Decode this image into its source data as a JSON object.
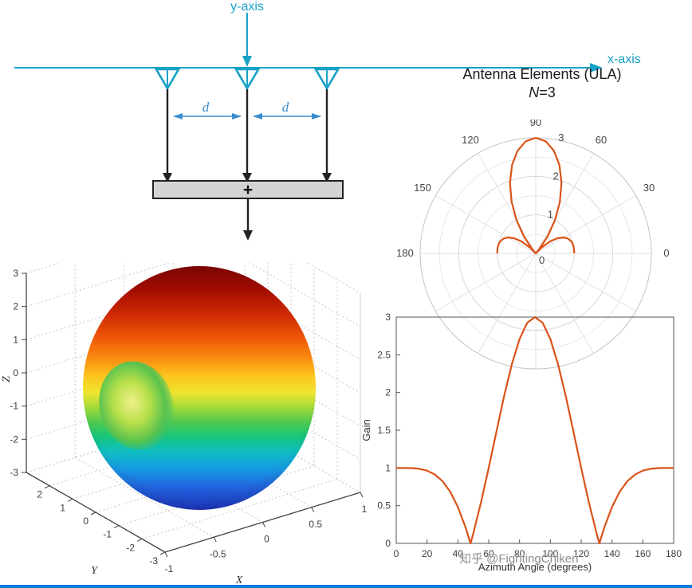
{
  "watermark": {
    "text": "知乎 @FightingChiken"
  },
  "footer": {
    "color": "#0d7ce0"
  },
  "ula_diagram": {
    "y_axis_label": "y-axis",
    "x_axis_label": "x-axis",
    "spacing_labels": [
      "d",
      "d"
    ],
    "sum_symbol": "+",
    "element_count": 3,
    "accent_color": "#17a2c6",
    "dim_color": "#3c8dcf",
    "block_fill": "#d4d4d4"
  },
  "polar_chart": {
    "title": "Antenna Elements (ULA)",
    "subtitle_italic": "N",
    "subtitle_rest": "=3",
    "theta_tick_labels": [
      "0",
      "30",
      "60",
      "90",
      "120",
      "150",
      "180"
    ],
    "theta_tick_angles": [
      0,
      30,
      60,
      90,
      120,
      150,
      180
    ],
    "r_tick_labels": [
      "0",
      "1",
      "2",
      "3"
    ],
    "line_color": "#d95319"
  },
  "surface_chart": {
    "xlabel": "X",
    "ylabel": "Y",
    "zlabel": "Z",
    "z_tick_labels": [
      "3",
      "2",
      "1",
      "0",
      "-1",
      "-2",
      "-3"
    ],
    "y_tick_labels": [
      "2",
      "1",
      "0",
      "-1",
      "-2",
      "-3"
    ],
    "x_tick_labels": [
      "-1",
      "-0.5",
      "0",
      "0.5",
      "1"
    ],
    "colormap": "jet"
  },
  "line_chart": {
    "xlabel": "Azimuth Angle (degrees)",
    "ylabel": "Gain",
    "x_tick_labels": [
      "0",
      "20",
      "40",
      "60",
      "80",
      "100",
      "120",
      "140",
      "160",
      "180"
    ],
    "y_tick_labels": [
      "0",
      "0.5",
      "1",
      "1.5",
      "2",
      "2.5",
      "3"
    ],
    "line_color": "#d95319"
  },
  "chart_data": [
    {
      "id": "polar-gain-pattern",
      "type": "line",
      "polar": true,
      "title": "Antenna Elements (ULA) N=3",
      "theta_range": [
        0,
        180
      ],
      "r_ticks": [
        0,
        1,
        2,
        3
      ],
      "color": "#d95319",
      "theta_deg": [
        0,
        5,
        10,
        15,
        20,
        25,
        30,
        35,
        40,
        45,
        48.19,
        50,
        55,
        60,
        65,
        70,
        75,
        80,
        85,
        90,
        95,
        100,
        105,
        110,
        115,
        120,
        125,
        130,
        131.81,
        135,
        140,
        145,
        150,
        155,
        160,
        165,
        170,
        175,
        180
      ],
      "gain": [
        1,
        0.999,
        0.998,
        0.989,
        0.964,
        0.914,
        0.826,
        0.686,
        0.484,
        0.211,
        0,
        0.133,
        0.542,
        1,
        1.481,
        1.952,
        2.375,
        2.71,
        2.925,
        3,
        2.925,
        2.71,
        2.375,
        1.952,
        1.481,
        1,
        0.542,
        0.133,
        0,
        0.211,
        0.484,
        0.686,
        0.826,
        0.914,
        0.964,
        0.989,
        0.998,
        0.999,
        1
      ]
    },
    {
      "id": "surface-3d-pattern",
      "type": "surface",
      "description": "3D radiation pattern of 3-element ULA: doughnut-shaped gain surface with side dimple, jet colormap (red top to blue bottom)",
      "xlabel": "X",
      "ylabel": "Y",
      "zlabel": "Z",
      "xlim": [
        -1,
        1
      ],
      "ylim": [
        -3,
        3
      ],
      "zlim": [
        -3,
        3
      ],
      "x_ticks": [
        -1,
        -0.5,
        0,
        0.5,
        1
      ],
      "y_ticks": [
        -3,
        -2,
        -1,
        0,
        1,
        2,
        3
      ],
      "z_ticks": [
        -3,
        -2,
        -1,
        0,
        1,
        2,
        3
      ],
      "colormap": "jet"
    },
    {
      "id": "gain-vs-azimuth",
      "type": "line",
      "xlabel": "Azimuth Angle (degrees)",
      "ylabel": "Gain",
      "xlim": [
        0,
        180
      ],
      "ylim": [
        0,
        3
      ],
      "color": "#d95319",
      "x": [
        0,
        5,
        10,
        15,
        20,
        25,
        30,
        35,
        40,
        45,
        48.19,
        50,
        55,
        60,
        65,
        70,
        75,
        80,
        85,
        90,
        95,
        100,
        105,
        110,
        115,
        120,
        125,
        130,
        131.81,
        135,
        140,
        145,
        150,
        155,
        160,
        165,
        170,
        175,
        180
      ],
      "y": [
        1,
        0.999,
        0.998,
        0.989,
        0.964,
        0.914,
        0.826,
        0.686,
        0.484,
        0.211,
        0,
        0.133,
        0.542,
        1,
        1.481,
        1.952,
        2.375,
        2.71,
        2.925,
        3,
        2.925,
        2.71,
        2.375,
        1.952,
        1.481,
        1,
        0.542,
        0.133,
        0,
        0.211,
        0.484,
        0.686,
        0.826,
        0.914,
        0.964,
        0.989,
        0.998,
        0.999,
        1
      ]
    }
  ]
}
